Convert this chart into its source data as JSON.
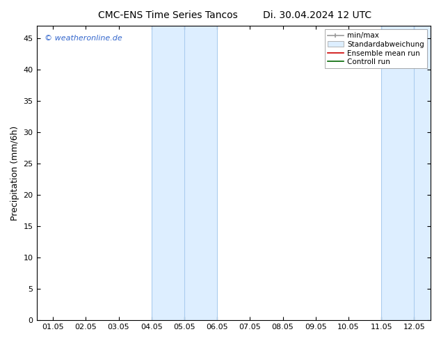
{
  "title_left": "CMC-ENS Time Series Tancos",
  "title_right": "Di. 30.04.2024 12 UTC",
  "ylabel": "Precipitation (mm/6h)",
  "ylim": [
    0,
    47
  ],
  "yticks": [
    0,
    5,
    10,
    15,
    20,
    25,
    30,
    35,
    40,
    45
  ],
  "xtick_labels": [
    "01.05",
    "02.05",
    "03.05",
    "04.05",
    "05.05",
    "06.05",
    "07.05",
    "08.05",
    "09.05",
    "10.05",
    "11.05",
    "12.05"
  ],
  "num_xticks": 12,
  "shade_regions": [
    {
      "xstart": 3,
      "xend": 5,
      "color": "#ddeeff"
    },
    {
      "xstart": 10,
      "xend": 12,
      "color": "#ddeeff"
    }
  ],
  "shade_border_color": "#aaccee",
  "shade_border_lw": 0.8,
  "vlines_x": [
    3,
    4,
    5,
    10,
    11,
    12
  ],
  "watermark": "© weatheronline.de",
  "watermark_color": "#3366cc",
  "background_color": "#ffffff",
  "plot_bg_color": "#ffffff",
  "legend_labels": [
    "min/max",
    "Standardabweichung",
    "Ensemble mean run",
    "Controll run"
  ],
  "legend_colors": [
    "#999999",
    "#ddeeff",
    "#cc0000",
    "#006600"
  ],
  "title_fontsize": 10,
  "label_fontsize": 9,
  "tick_fontsize": 8,
  "legend_fontsize": 7.5
}
